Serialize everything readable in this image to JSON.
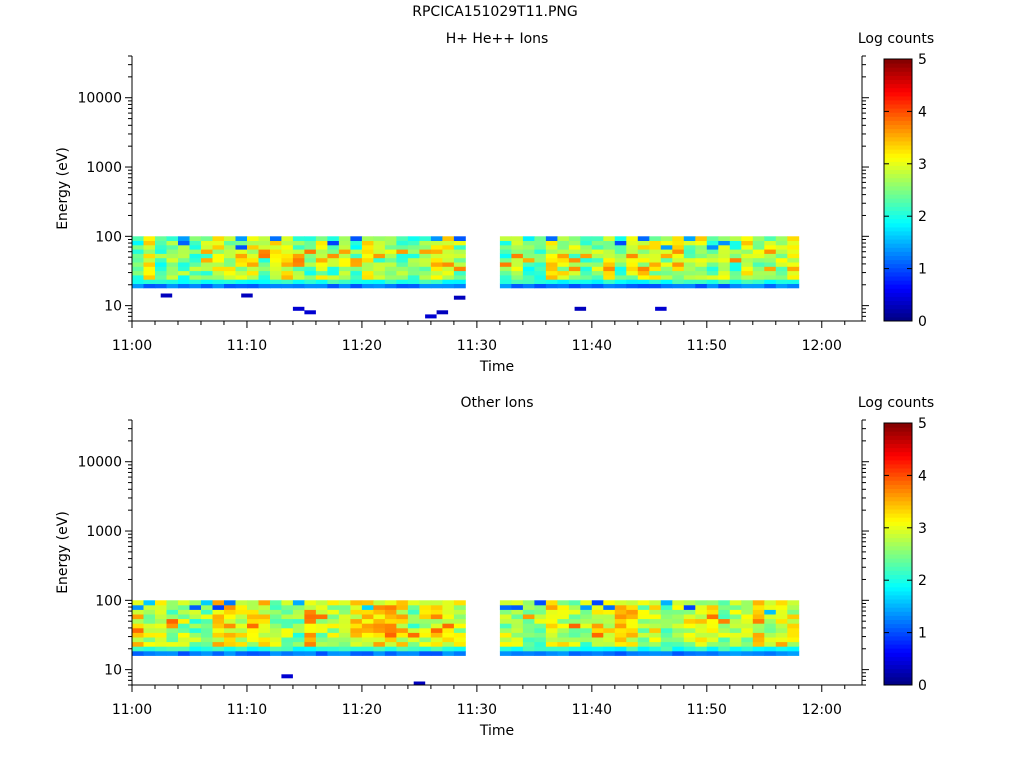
{
  "page": {
    "title": "RPCICA151029T11.PNG"
  },
  "chart_data": [
    {
      "type": "heatmap",
      "title": "H+ He++ Ions",
      "xlabel": "Time",
      "ylabel": "Energy (eV)",
      "colorbar_label": "Log counts",
      "x_ticks": [
        "11:00",
        "11:10",
        "11:20",
        "11:30",
        "11:40",
        "11:50",
        "12:00"
      ],
      "x_range_minutes": [
        0,
        63.5
      ],
      "y_scale": "log",
      "y_range": [
        6,
        40000
      ],
      "y_ticks": [
        10,
        100,
        1000,
        10000
      ],
      "colorbar_range": [
        0,
        5
      ],
      "colorbar_ticks": [
        0,
        1,
        2,
        3,
        4,
        5
      ],
      "data_gap_minutes": [
        29,
        32
      ],
      "data_end_minutes": 58,
      "energy_band_eV": [
        18,
        100
      ],
      "typical_log_counts": {
        "low_energy_edge": 1.0,
        "mid_band": 2.7,
        "peak": 3.8
      },
      "isolated_low_hits": [
        {
          "time_min": 3,
          "energy_eV": 14,
          "log_counts": 0.3
        },
        {
          "time_min": 10,
          "energy_eV": 14,
          "log_counts": 0.3
        },
        {
          "time_min": 14.5,
          "energy_eV": 9,
          "log_counts": 0.4
        },
        {
          "time_min": 15.5,
          "energy_eV": 8,
          "log_counts": 0.4
        },
        {
          "time_min": 26,
          "energy_eV": 7,
          "log_counts": 0.4
        },
        {
          "time_min": 27,
          "energy_eV": 8,
          "log_counts": 0.3
        },
        {
          "time_min": 28.5,
          "energy_eV": 13,
          "log_counts": 0.3
        },
        {
          "time_min": 39,
          "energy_eV": 9,
          "log_counts": 0.3
        },
        {
          "time_min": 46,
          "energy_eV": 9,
          "log_counts": 0.4
        }
      ]
    },
    {
      "type": "heatmap",
      "title": "Other Ions",
      "xlabel": "Time",
      "ylabel": "Energy (eV)",
      "colorbar_label": "Log counts",
      "x_ticks": [
        "11:00",
        "11:10",
        "11:20",
        "11:30",
        "11:40",
        "11:50",
        "12:00"
      ],
      "x_range_minutes": [
        0,
        63.5
      ],
      "y_scale": "log",
      "y_range": [
        6,
        40000
      ],
      "y_ticks": [
        10,
        100,
        1000,
        10000
      ],
      "colorbar_range": [
        0,
        5
      ],
      "colorbar_ticks": [
        0,
        1,
        2,
        3,
        4,
        5
      ],
      "data_gap_minutes": [
        29,
        32
      ],
      "data_end_minutes": 58,
      "energy_band_eV": [
        16,
        100
      ],
      "typical_log_counts": {
        "low_energy_edge": 1.0,
        "mid_band": 2.9,
        "peak": 3.9
      },
      "isolated_low_hits": [
        {
          "time_min": 13.5,
          "energy_eV": 8,
          "log_counts": 0.4
        },
        {
          "time_min": 25,
          "energy_eV": 6.3,
          "log_counts": 0.3
        }
      ]
    }
  ]
}
